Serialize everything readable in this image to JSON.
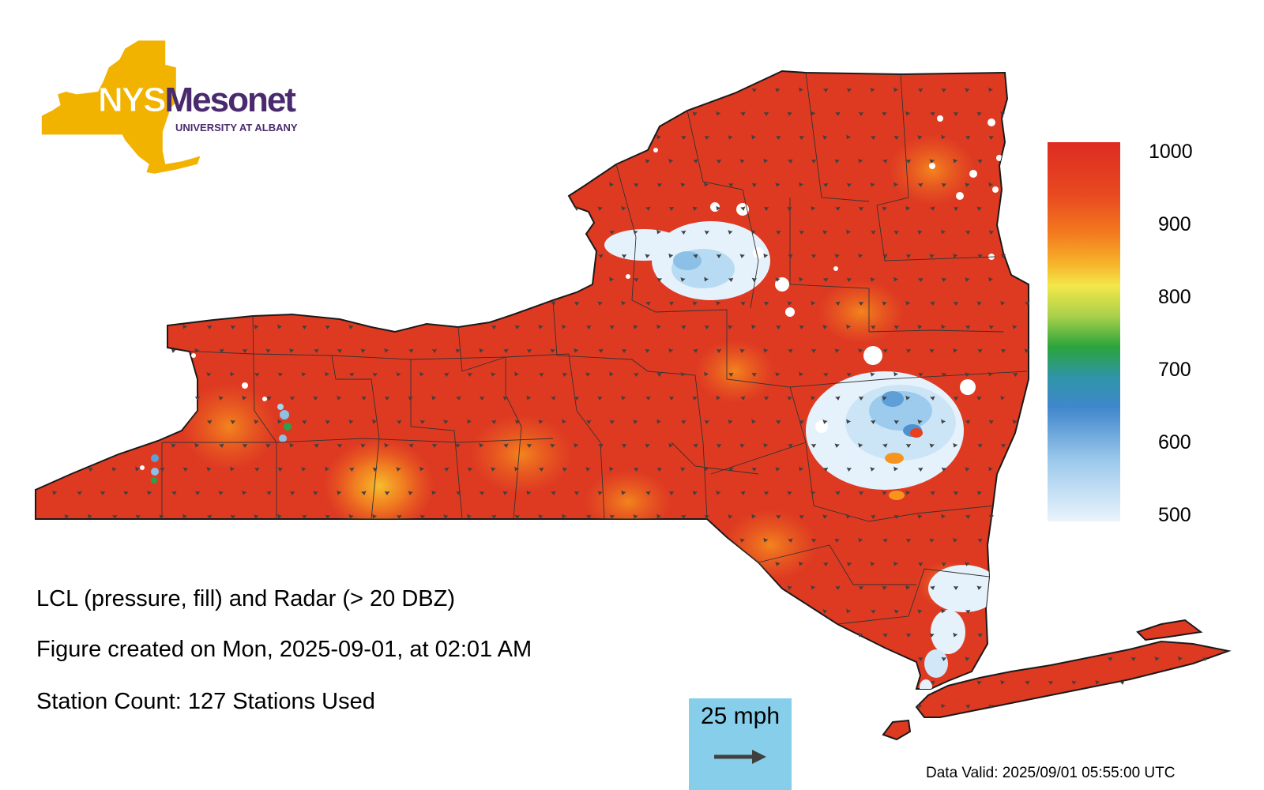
{
  "logo": {
    "name_part1": "NYS",
    "name_part2": "Mesonet",
    "subtitle": "UNIVERSITY AT ALBANY",
    "state_color": "#f2b300",
    "text_color": "#4a2a6e"
  },
  "captions": {
    "title": "LCL (pressure, fill) and Radar (> 20 DBZ)",
    "created": "Figure created on Mon, 2025-09-01, at 02:01 AM",
    "station_count": "Station Count: 127 Stations Used"
  },
  "data_valid": "Data Valid: 2025/09/01 05:55:00 UTC",
  "wind_key": {
    "label": "25 mph",
    "background": "#87ceeb"
  },
  "colorbar": {
    "ticks": [
      "1000",
      "900",
      "800",
      "700",
      "600",
      "500"
    ],
    "stops": [
      "#de2b22",
      "#f0641e",
      "#f7b72a",
      "#f2e84a",
      "#7cc44a",
      "#22a53c",
      "#3d86c8",
      "#8cc0e6",
      "#e6f2fb"
    ]
  },
  "colors": {
    "base_fill": "#de3a22",
    "warm_spot": "#f7941d",
    "hot_spot": "#f6c22c",
    "radar_light": "#e3f0fa",
    "radar_mid": "#a9d3f0",
    "radar_dark": "#5ea0d8",
    "radar_green": "#2aa14a",
    "border": "#1a1a1a",
    "arrow": "#404040"
  }
}
